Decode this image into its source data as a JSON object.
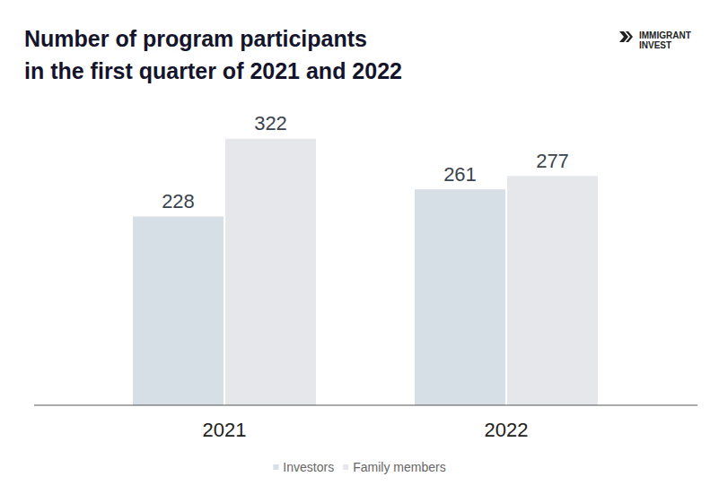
{
  "chart_data": {
    "type": "bar",
    "title": "Number of program participants\nin the first quarter of 2021 and 2022",
    "logo": [
      "IMMIGRANT",
      "INVEST"
    ],
    "categories": [
      "2021",
      "2022"
    ],
    "series": [
      {
        "name": "Investors",
        "color": "#d6dee6",
        "values": [
          228,
          261
        ]
      },
      {
        "name": "Family members",
        "color": "#e5e7ea",
        "values": [
          322,
          277
        ]
      }
    ],
    "ylim": [
      0,
      350
    ],
    "yticks": [
      0,
      350
    ],
    "grid": false,
    "legend": "bottom",
    "data_labels": true,
    "tick_labels": "x"
  }
}
